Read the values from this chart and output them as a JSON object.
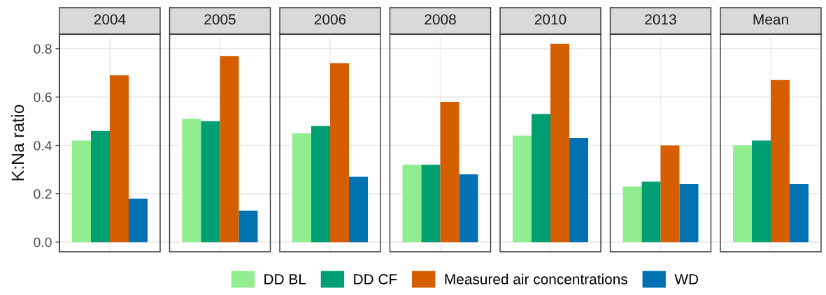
{
  "chart_data": {
    "type": "bar",
    "categories": [
      "2004",
      "2005",
      "2006",
      "2008",
      "2010",
      "2013",
      "Mean"
    ],
    "ylabel": "K:Na ratio",
    "series": [
      {
        "name": "DD BL",
        "color": "#90ee90",
        "values": [
          0.42,
          0.51,
          0.45,
          0.32,
          0.44,
          0.23,
          0.4
        ]
      },
      {
        "name": "DD CF",
        "color": "#009e73",
        "values": [
          0.46,
          0.5,
          0.48,
          0.32,
          0.53,
          0.25,
          0.42
        ]
      },
      {
        "name": "Measured air concentrations",
        "color": "#d55e00",
        "values": [
          0.69,
          0.77,
          0.74,
          0.58,
          0.82,
          0.4,
          0.67
        ]
      },
      {
        "name": "WD",
        "color": "#0072b2",
        "values": [
          0.18,
          0.13,
          0.27,
          0.28,
          0.43,
          0.24,
          0.24
        ]
      }
    ],
    "ylim": [
      -0.04,
      0.86
    ],
    "yticks": [
      {
        "value": 0,
        "label": "0.0"
      },
      0.2,
      0.4,
      0.6,
      0.8
    ],
    "grid": true,
    "legend": "bottom"
  }
}
